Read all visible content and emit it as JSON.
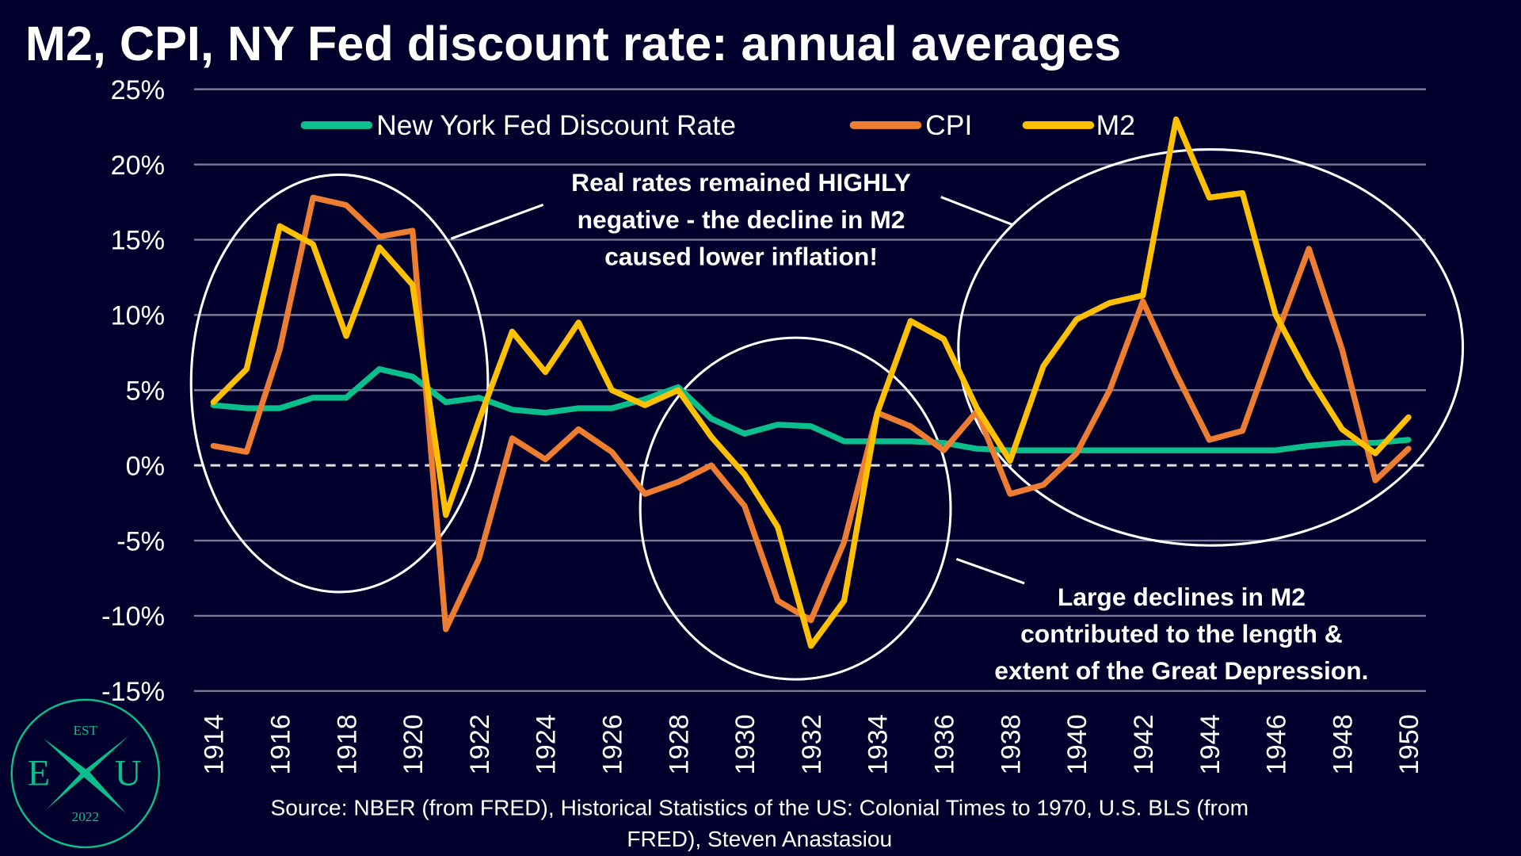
{
  "chart_data": {
    "type": "line",
    "title": "M2, CPI, NY Fed discount rate: annual averages",
    "xlabel": "",
    "ylabel": "",
    "ylim": [
      -15,
      25
    ],
    "yticks": [
      25,
      20,
      15,
      10,
      5,
      0,
      -5,
      -10,
      -15
    ],
    "ytick_labels": [
      "25%",
      "20%",
      "15%",
      "10%",
      "5%",
      "0%",
      "-5%",
      "-10%",
      "-15%"
    ],
    "xlim": [
      1914,
      1950
    ],
    "xtick_labels": [
      "1914",
      "1916",
      "1918",
      "1920",
      "1922",
      "1924",
      "1926",
      "1928",
      "1930",
      "1932",
      "1934",
      "1936",
      "1938",
      "1940",
      "1942",
      "1944",
      "1946",
      "1948",
      "1950"
    ],
    "grid": true,
    "legend_position": "top",
    "x": [
      1914,
      1915,
      1916,
      1917,
      1918,
      1919,
      1920,
      1921,
      1922,
      1923,
      1924,
      1925,
      1926,
      1927,
      1928,
      1929,
      1930,
      1931,
      1932,
      1933,
      1934,
      1935,
      1936,
      1937,
      1938,
      1939,
      1940,
      1941,
      1942,
      1943,
      1944,
      1945,
      1946,
      1947,
      1948,
      1949,
      1950
    ],
    "series": [
      {
        "name": "New York Fed Discount Rate",
        "color": "#0bbf8c",
        "values": [
          4.0,
          3.8,
          3.8,
          4.5,
          4.5,
          6.4,
          5.9,
          4.2,
          4.5,
          3.7,
          3.5,
          3.8,
          3.8,
          4.4,
          5.2,
          3.1,
          2.1,
          2.7,
          2.6,
          1.6,
          1.6,
          1.6,
          1.5,
          1.1,
          1.0,
          1.0,
          1.0,
          1.0,
          1.0,
          1.0,
          1.0,
          1.0,
          1.0,
          1.3,
          1.5,
          1.5,
          1.7
        ]
      },
      {
        "name": "CPI",
        "color": "#ed7d31",
        "values": [
          1.3,
          0.9,
          7.7,
          17.8,
          17.3,
          15.2,
          15.6,
          -10.9,
          -6.2,
          1.8,
          0.4,
          2.4,
          0.9,
          -1.9,
          -1.1,
          0.0,
          -2.7,
          -9.0,
          -10.3,
          -5.1,
          3.5,
          2.6,
          1.0,
          3.6,
          -1.9,
          -1.3,
          0.8,
          5.0,
          10.9,
          6.1,
          1.7,
          2.3,
          8.5,
          14.4,
          7.7,
          -1.0,
          1.1
        ]
      },
      {
        "name": "M2",
        "color": "#ffc000",
        "values": [
          4.2,
          6.4,
          15.9,
          14.7,
          8.6,
          14.5,
          12.0,
          -3.3,
          3.0,
          8.9,
          6.2,
          9.5,
          5.0,
          4.0,
          5.0,
          1.9,
          -0.6,
          -4.1,
          -12.0,
          -9.0,
          3.5,
          9.6,
          8.4,
          3.8,
          0.3,
          6.6,
          9.7,
          10.8,
          11.3,
          23.0,
          17.8,
          18.1,
          10.0,
          5.9,
          2.4,
          0.8,
          3.2
        ]
      }
    ],
    "annotations": [
      {
        "lines": [
          "Real rates remained HIGHLY",
          "negative - the decline in M2",
          "caused lower inflation!"
        ]
      },
      {
        "lines": [
          "Large declines in M2",
          "contributed to the length &",
          "extent of the Great Depression."
        ]
      }
    ],
    "source_lines": [
      "Source: NBER (from FRED), Historical Statistics of the US: Colonial Times to 1970, U.S. BLS (from",
      "FRED), Steven Anastasiou"
    ]
  },
  "logo": {
    "top": "EST",
    "left": "E",
    "right": "U",
    "bottom": "2022",
    "center": "X"
  },
  "colors": {
    "background": "#01002c",
    "grid": "#7a7a96",
    "text": "#ffffff"
  }
}
